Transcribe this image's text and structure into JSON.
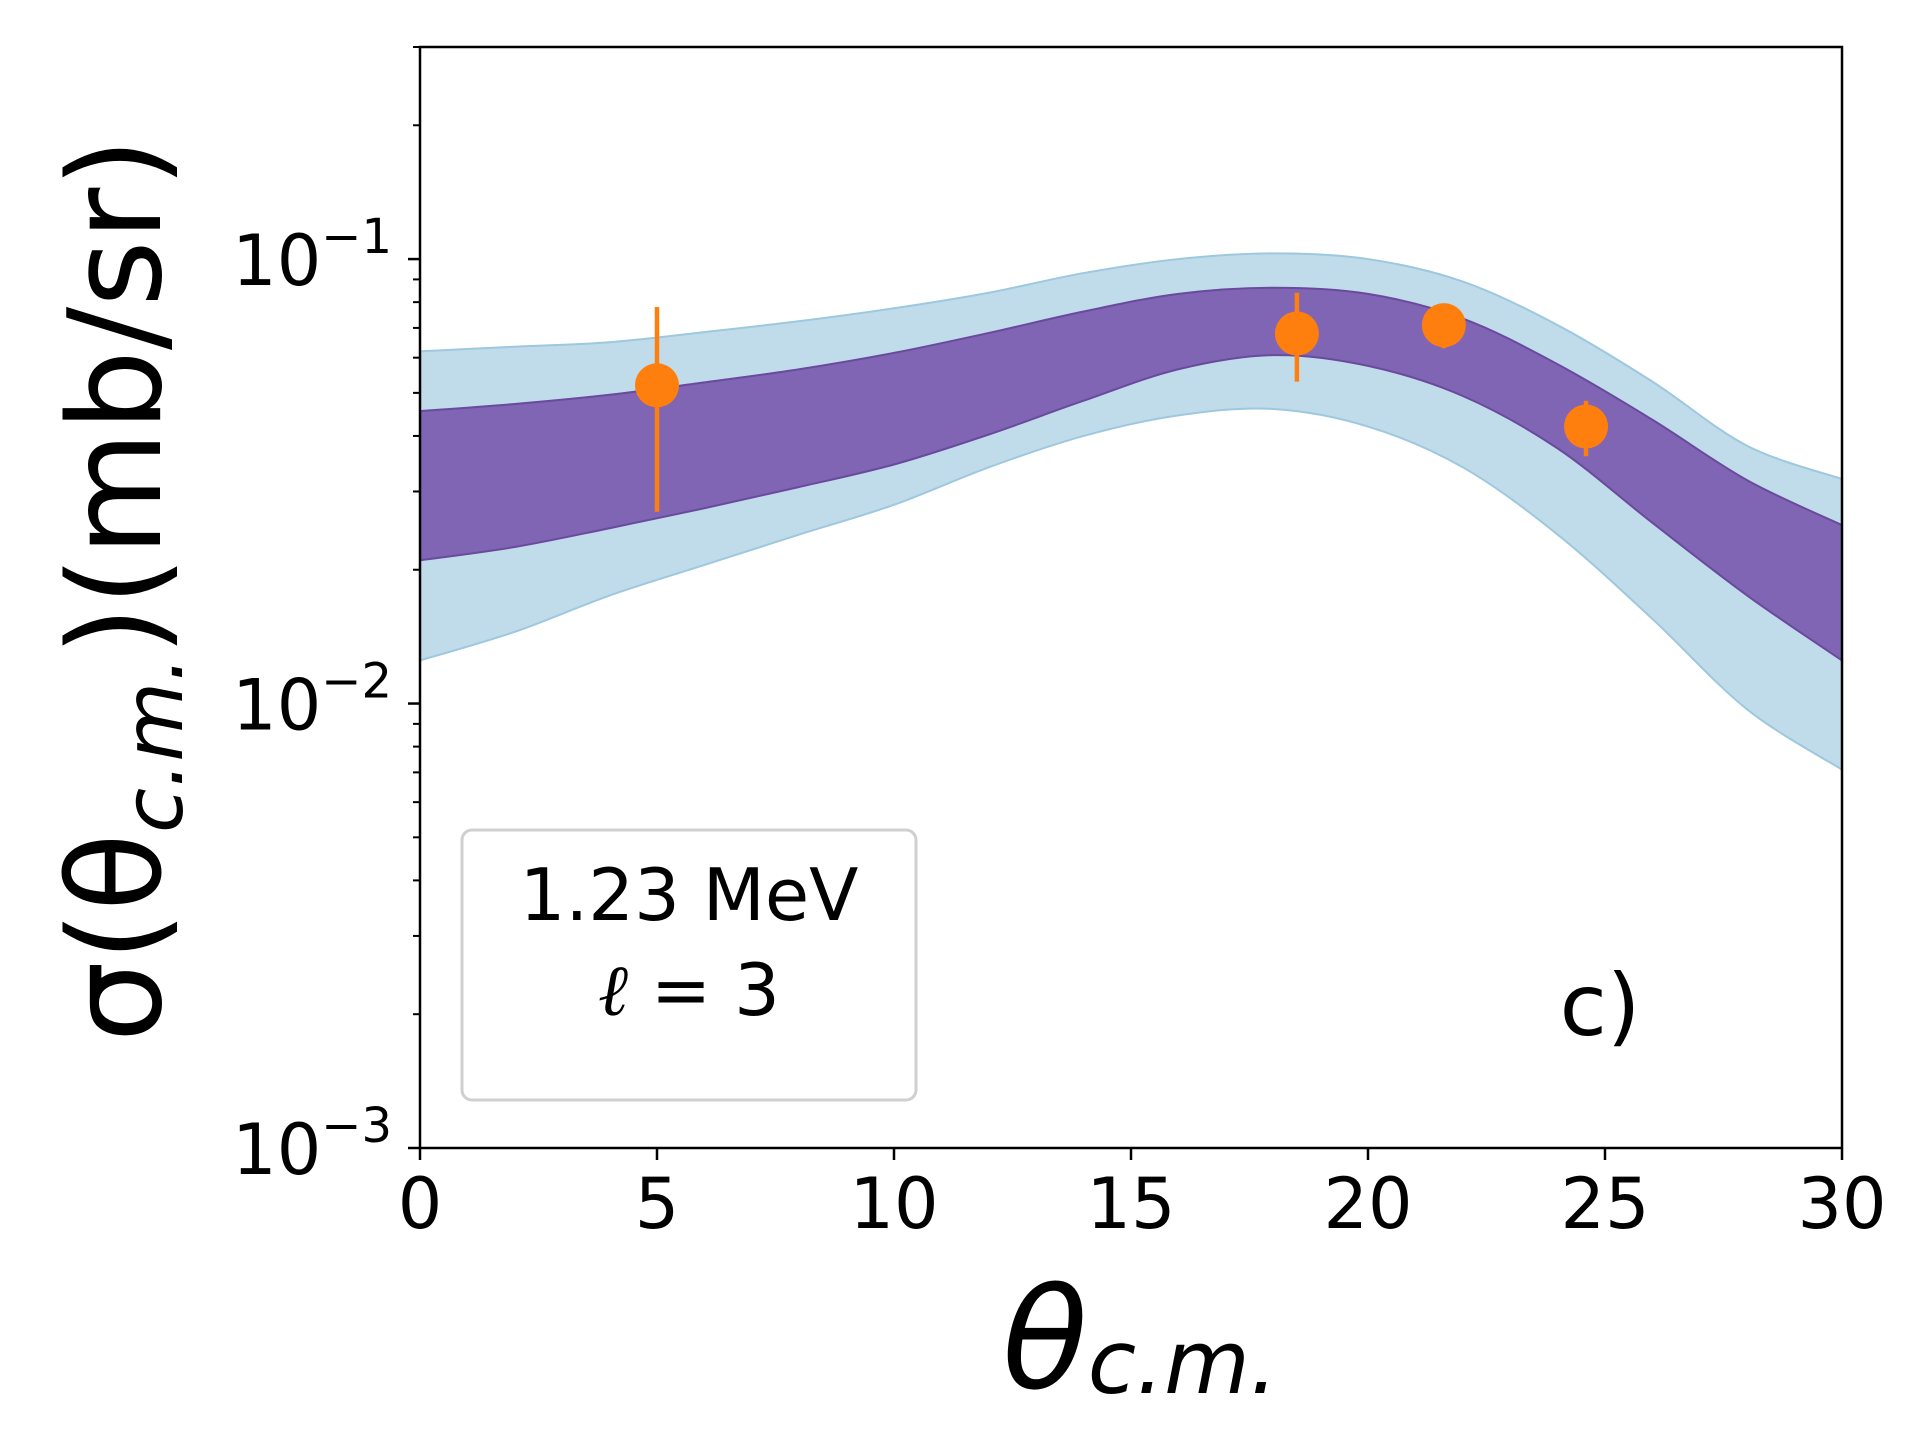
{
  "chart_data": {
    "type": "line",
    "title": "",
    "xlabel": "θ",
    "xlabel_sub": "c.m.",
    "ylabel_pre": "σ(θ",
    "ylabel_sub": "c.m.",
    "ylabel_post": ")(mb/sr)",
    "xlim": [
      0,
      30
    ],
    "ylim": [
      0.001,
      0.3
    ],
    "yscale": "log",
    "x_ticks": [
      0,
      5,
      10,
      15,
      20,
      25,
      30
    ],
    "x_tick_labels": [
      "0",
      "5",
      "10",
      "15",
      "20",
      "25",
      "30"
    ],
    "y_ticks": [
      {
        "value": 0.001,
        "base": "10",
        "exp": "−3"
      },
      {
        "value": 0.01,
        "base": "10",
        "exp": "−2"
      },
      {
        "value": 0.1,
        "base": "10",
        "exp": "−1"
      }
    ],
    "bands": [
      {
        "name": "outer band",
        "color": "#b2d4e6",
        "x": [
          0,
          2,
          4,
          6,
          8,
          10,
          12,
          14,
          16,
          18,
          20,
          22,
          24,
          26,
          28,
          30
        ],
        "lower": [
          0.0125,
          0.0145,
          0.0175,
          0.0205,
          0.024,
          0.028,
          0.034,
          0.04,
          0.0445,
          0.046,
          0.042,
          0.034,
          0.024,
          0.0155,
          0.0097,
          0.0071
        ],
        "upper": [
          0.062,
          0.0635,
          0.065,
          0.0685,
          0.0725,
          0.0775,
          0.084,
          0.093,
          0.1,
          0.103,
          0.1,
          0.089,
          0.071,
          0.053,
          0.038,
          0.032
        ]
      },
      {
        "name": "inner band",
        "color": "#7a5aaf",
        "x": [
          0,
          2,
          4,
          6,
          8,
          10,
          12,
          14,
          16,
          18,
          20,
          22,
          24,
          26,
          28,
          30
        ],
        "lower": [
          0.021,
          0.0225,
          0.0248,
          0.0275,
          0.0307,
          0.0345,
          0.0403,
          0.048,
          0.0565,
          0.0608,
          0.0575,
          0.0492,
          0.0375,
          0.0255,
          0.0175,
          0.0125
        ],
        "upper": [
          0.0455,
          0.0472,
          0.0495,
          0.0528,
          0.0565,
          0.0615,
          0.0682,
          0.0762,
          0.0835,
          0.0862,
          0.0835,
          0.0735,
          0.058,
          0.0435,
          0.0318,
          0.0252
        ]
      }
    ],
    "series": [
      {
        "name": "data",
        "color": "#ff7f0e",
        "points": [
          {
            "x": 5.0,
            "y": 0.052,
            "err_low": 0.027,
            "err_high": 0.078
          },
          {
            "x": 18.5,
            "y": 0.068,
            "err_low": 0.053,
            "err_high": 0.084
          },
          {
            "x": 21.6,
            "y": 0.071,
            "err_low": 0.063,
            "err_high": 0.078
          },
          {
            "x": 24.6,
            "y": 0.042,
            "err_low": 0.036,
            "err_high": 0.048
          }
        ]
      }
    ],
    "annotation_box": {
      "line1": "1.23 MeV",
      "line2_symbol": "ℓ",
      "line2_rest": " = 3"
    },
    "panel_label": "c)"
  }
}
